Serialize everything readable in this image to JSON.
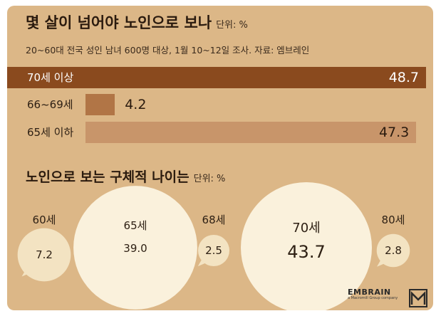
{
  "header": {
    "title": "몇 살이 넘어야 노인으로 보나",
    "unit": "단위: %",
    "subtitle": "20~60대 전국 성인 남녀 600명 대상, 1월 10~12일 조사. 자료: 엠브레인"
  },
  "section": {
    "title": "노인으로 보는 구체적 나이는",
    "unit": "단위: %"
  },
  "logo": {
    "name": "EMBRAIN",
    "tagline": "a Macromill Group company"
  },
  "colors": {
    "panel": "#dcb787",
    "bar_dark": "#8a4a1e",
    "bar_medium": "#b17546",
    "bar_light": "#c8956a",
    "bubble_large": "#faf1dc",
    "bubble_small": "#f3e3c2"
  },
  "chart_data": [
    {
      "type": "bar",
      "orientation": "horizontal",
      "title": "몇 살이 넘어야 노인으로 보나",
      "unit": "%",
      "categories": [
        "70세 이상",
        "66~69세",
        "65세 이하"
      ],
      "values": [
        48.7,
        4.2,
        47.3
      ],
      "labels": [
        "48.7",
        "4.2",
        "47.3"
      ],
      "xlim": [
        0,
        48.7
      ]
    },
    {
      "type": "bubble",
      "title": "노인으로 보는 구체적 나이는",
      "unit": "%",
      "categories": [
        "60세",
        "65세",
        "68세",
        "70세",
        "80세"
      ],
      "values": [
        7.2,
        39.0,
        2.5,
        43.7,
        2.8
      ],
      "labels": [
        "7.2",
        "39.0",
        "2.5",
        "43.7",
        "2.8"
      ]
    }
  ]
}
